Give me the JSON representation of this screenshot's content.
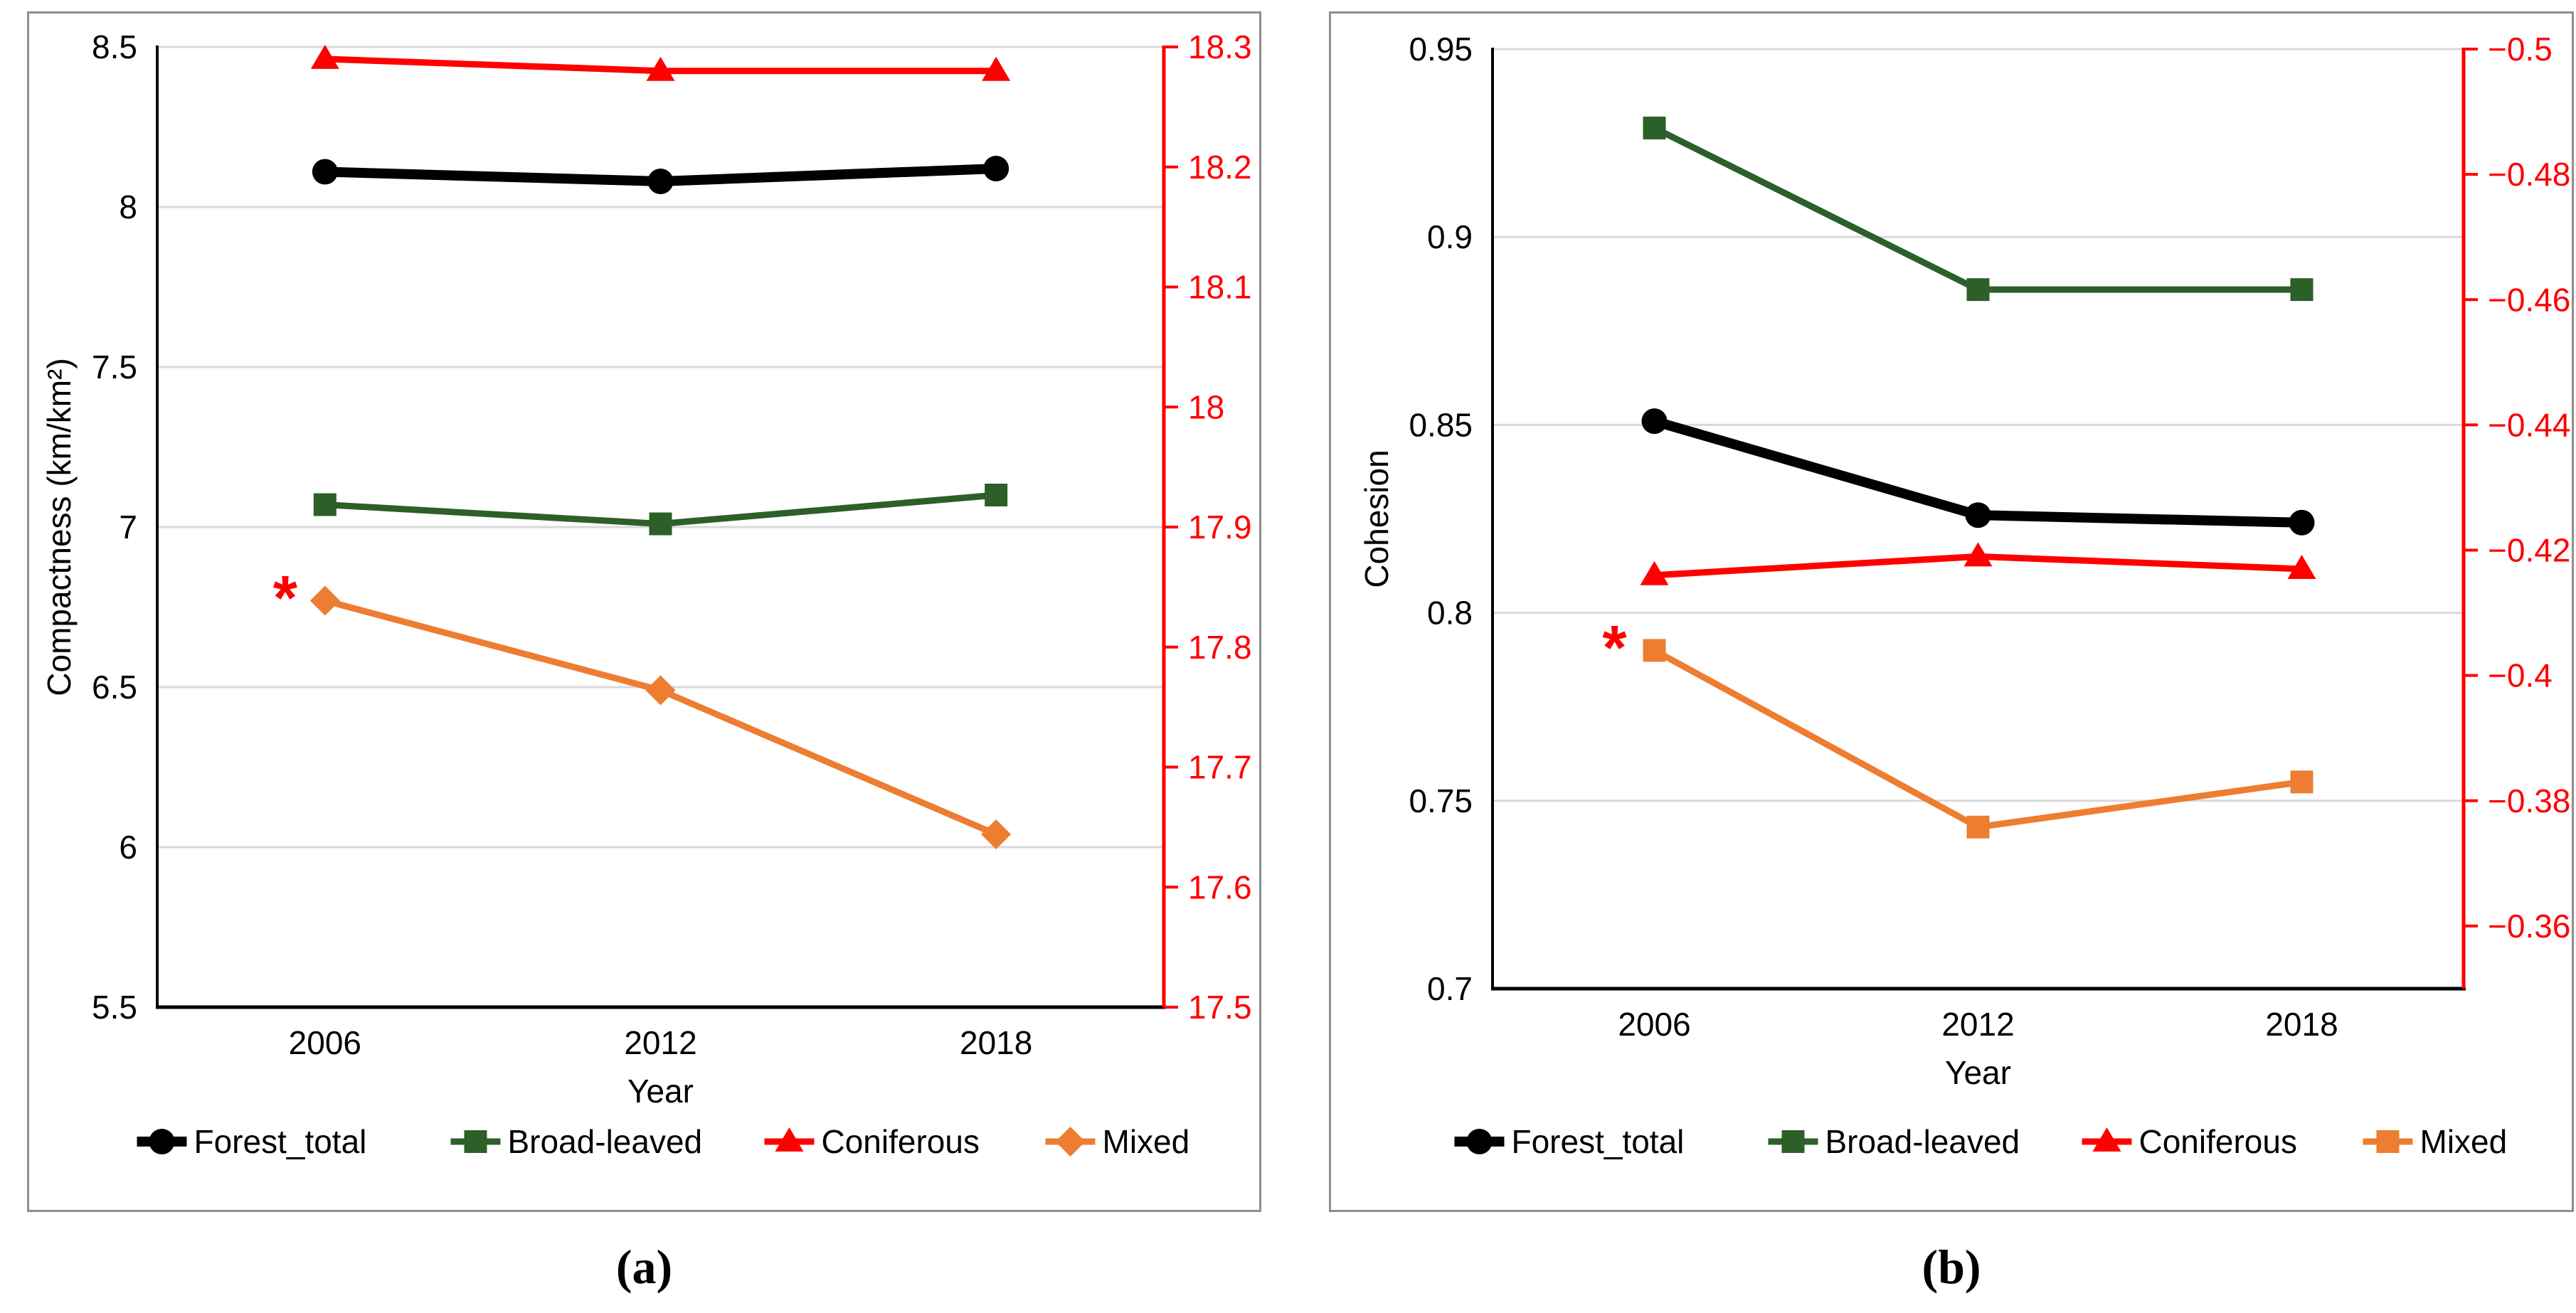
{
  "figure": {
    "captions": {
      "a": "(a)",
      "b": "(b)"
    }
  },
  "colors": {
    "black": "#000000",
    "green": "#2d5f28",
    "red": "#ff0000",
    "orange": "#ed7d31",
    "gridline": "#d9d9d9",
    "axis_black": "#000000",
    "panel_border": "#8e8e8e"
  },
  "chart_data": [
    {
      "id": "a",
      "type": "line",
      "caption": "(a)",
      "xlabel": "Year",
      "categories": [
        "2006",
        "2012",
        "2018"
      ],
      "grid": true,
      "legend_position": "bottom",
      "left_axis": {
        "label": "Compactness (km/km²)",
        "min": 5.5,
        "max": 8.5,
        "ticks": [
          {
            "v": 8.5,
            "label": "8.5"
          },
          {
            "v": 8.0,
            "label": "8"
          },
          {
            "v": 7.5,
            "label": "7.5"
          },
          {
            "v": 7.0,
            "label": "7"
          },
          {
            "v": 6.5,
            "label": "6.5"
          },
          {
            "v": 6.0,
            "label": "6"
          },
          {
            "v": 5.5,
            "label": "5.5"
          }
        ]
      },
      "right_axis": {
        "color": "#ff0000",
        "top": 18.3,
        "bottom": 17.5,
        "ticks": [
          {
            "v": 18.3,
            "label": "18.3"
          },
          {
            "v": 18.2,
            "label": "18.2"
          },
          {
            "v": 18.1,
            "label": "18.1"
          },
          {
            "v": 18.0,
            "label": "18"
          },
          {
            "v": 17.9,
            "label": "17.9"
          },
          {
            "v": 17.8,
            "label": "17.8"
          },
          {
            "v": 17.7,
            "label": "17.7"
          },
          {
            "v": 17.6,
            "label": "17.6"
          },
          {
            "v": 17.5,
            "label": "17.5"
          }
        ]
      },
      "series": [
        {
          "name": "Forest_total",
          "axis": "left",
          "color": "#000000",
          "marker": "circle",
          "line_width": 14,
          "values": [
            8.11,
            8.08,
            8.12
          ]
        },
        {
          "name": "Broad-leaved",
          "axis": "left",
          "color": "#2d5f28",
          "marker": "square",
          "line_width": 9,
          "values": [
            7.07,
            7.01,
            7.1
          ]
        },
        {
          "name": "Coniferous",
          "axis": "right",
          "color": "#ff0000",
          "marker": "triangle",
          "line_width": 9,
          "values": [
            18.29,
            18.28,
            18.28
          ]
        },
        {
          "name": "Mixed",
          "axis": "left",
          "color": "#ed7d31",
          "marker": "diamond",
          "line_width": 9,
          "values": [
            6.77,
            6.49,
            6.04
          ]
        }
      ],
      "annotations": [
        {
          "text": "*",
          "color": "#ff0000",
          "series": "Mixed",
          "index": 0
        }
      ]
    },
    {
      "id": "b",
      "type": "line",
      "caption": "(b)",
      "xlabel": "Year",
      "categories": [
        "2006",
        "2012",
        "2018"
      ],
      "grid": true,
      "legend_position": "bottom",
      "left_axis": {
        "label": "Cohesion",
        "min": 0.7,
        "max": 0.95,
        "ticks": [
          {
            "v": 0.95,
            "label": "0.95"
          },
          {
            "v": 0.9,
            "label": "0.9"
          },
          {
            "v": 0.85,
            "label": "0.85"
          },
          {
            "v": 0.8,
            "label": "0.8"
          },
          {
            "v": 0.75,
            "label": "0.75"
          },
          {
            "v": 0.7,
            "label": "0.7"
          }
        ]
      },
      "right_axis": {
        "color": "#ff0000",
        "top": -0.5,
        "bottom": -0.35,
        "ticks": [
          {
            "v": -0.5,
            "label": "−0.5"
          },
          {
            "v": -0.48,
            "label": "−0.48"
          },
          {
            "v": -0.46,
            "label": "−0.46"
          },
          {
            "v": -0.44,
            "label": "−0.44"
          },
          {
            "v": -0.42,
            "label": "−0.42"
          },
          {
            "v": -0.4,
            "label": "−0.4"
          },
          {
            "v": -0.38,
            "label": "−0.38"
          },
          {
            "v": -0.36,
            "label": "−0.36"
          }
        ]
      },
      "series": [
        {
          "name": "Forest_total",
          "axis": "left",
          "color": "#000000",
          "marker": "circle",
          "line_width": 14,
          "values": [
            0.851,
            0.826,
            0.824
          ]
        },
        {
          "name": "Broad-leaved",
          "axis": "left",
          "color": "#2d5f28",
          "marker": "square",
          "line_width": 9,
          "values": [
            0.929,
            0.886,
            0.886
          ]
        },
        {
          "name": "Coniferous",
          "axis": "right",
          "color": "#ff0000",
          "marker": "triangle",
          "line_width": 9,
          "values": [
            -0.416,
            -0.419,
            -0.417
          ]
        },
        {
          "name": "Mixed",
          "axis": "left",
          "color": "#ed7d31",
          "marker": "square",
          "line_width": 9,
          "values": [
            0.79,
            0.743,
            0.755
          ]
        }
      ],
      "annotations": [
        {
          "text": "*",
          "color": "#ff0000",
          "series": "Mixed",
          "index": 0
        }
      ]
    }
  ]
}
